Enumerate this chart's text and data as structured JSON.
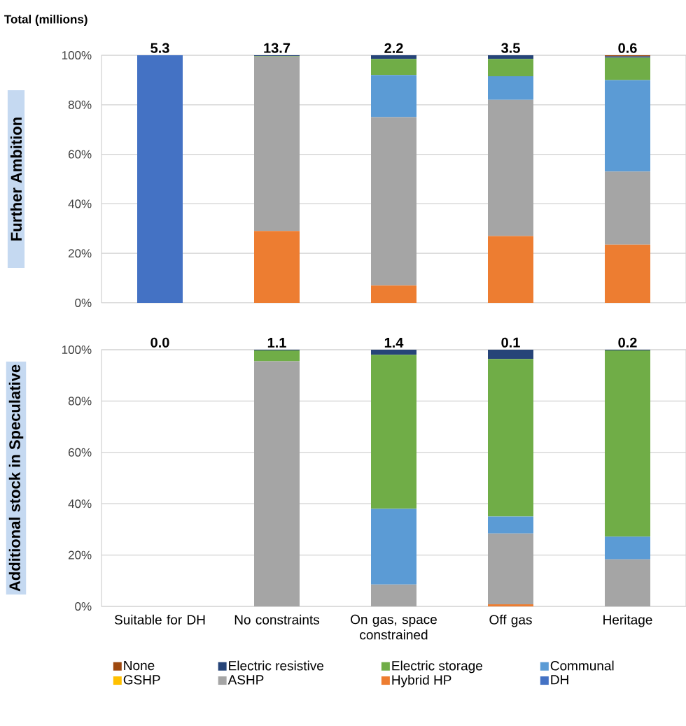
{
  "chart_data": [
    {
      "type": "bar",
      "stacked": true,
      "title": "Total (millions)",
      "ylabel": "Further Ambition",
      "categories": [
        null,
        null,
        null,
        null,
        null
      ],
      "tick_labels": "y",
      "annotations": [
        "5.3",
        "13.7",
        "2.2",
        "3.5",
        "0.6"
      ],
      "ylim": [
        0,
        100
      ],
      "yticks": [
        {
          "value": 0,
          "label": "0%"
        },
        {
          "value": 20,
          "label": "20%"
        },
        {
          "value": 40,
          "label": "40%"
        },
        {
          "value": 60,
          "label": "60%"
        },
        {
          "value": 80,
          "label": "80%"
        },
        {
          "value": 100,
          "label": "100%"
        }
      ],
      "grid": "y",
      "series": [
        {
          "color": "#4472c4",
          "values": [
            100,
            0,
            0,
            0,
            0
          ]
        },
        {
          "color": "#ed7d31",
          "values": [
            0,
            29,
            7,
            27,
            23.5
          ]
        },
        {
          "color": "#a5a5a5",
          "values": [
            0,
            70.5,
            68,
            55,
            29.5
          ]
        },
        {
          "color": "#ffc000",
          "values": [
            0,
            0,
            0,
            0,
            0
          ]
        },
        {
          "color": "#5b9bd5",
          "values": [
            0,
            0,
            17,
            9.5,
            37
          ]
        },
        {
          "color": "#70ad47",
          "values": [
            0,
            0.2,
            6.5,
            7,
            9
          ]
        },
        {
          "color": "#264478",
          "values": [
            0,
            0.3,
            1.5,
            1.5,
            0.6
          ]
        },
        {
          "color": "#9e480e",
          "values": [
            0,
            0,
            0,
            0,
            0.4
          ]
        }
      ]
    },
    {
      "type": "bar",
      "stacked": true,
      "ylabel": "Additional stock in Speculative",
      "categories": [
        "Suitable for DH",
        "No constraints",
        "On gas, space constrained",
        "Off gas",
        "Heritage"
      ],
      "annotations": [
        "0.0",
        "1.1",
        "1.4",
        "0.1",
        "0.2"
      ],
      "ylim": [
        0,
        100
      ],
      "yticks": [
        {
          "value": 0,
          "label": "0%"
        },
        {
          "value": 20,
          "label": "20%"
        },
        {
          "value": 40,
          "label": "40%"
        },
        {
          "value": 60,
          "label": "60%"
        },
        {
          "value": 80,
          "label": "80%"
        },
        {
          "value": 100,
          "label": "100%"
        }
      ],
      "grid": "y",
      "legend": "bottom",
      "series": [
        {
          "name": "DH",
          "color": "#4472c4",
          "values": [
            0,
            0,
            0,
            0,
            0
          ]
        },
        {
          "name": "Hybrid HP",
          "color": "#ed7d31",
          "values": [
            0,
            0,
            0,
            0.8,
            0
          ]
        },
        {
          "name": "ASHP",
          "color": "#a5a5a5",
          "values": [
            0,
            95.5,
            8.5,
            27.6,
            18.3
          ]
        },
        {
          "name": "GSHP",
          "color": "#ffc000",
          "values": [
            0,
            0,
            0,
            0,
            0
          ]
        },
        {
          "name": "Communal",
          "color": "#5b9bd5",
          "values": [
            0,
            0,
            29.5,
            6.6,
            8.9
          ]
        },
        {
          "name": "Electric storage",
          "color": "#70ad47",
          "values": [
            0,
            4.2,
            60,
            61.4,
            72.5
          ]
        },
        {
          "name": "Electric resistive",
          "color": "#264478",
          "values": [
            0,
            0.3,
            2,
            3.6,
            0.3
          ]
        },
        {
          "name": "None",
          "color": "#9e480e",
          "values": [
            0,
            0,
            0,
            0,
            0
          ]
        }
      ]
    }
  ]
}
